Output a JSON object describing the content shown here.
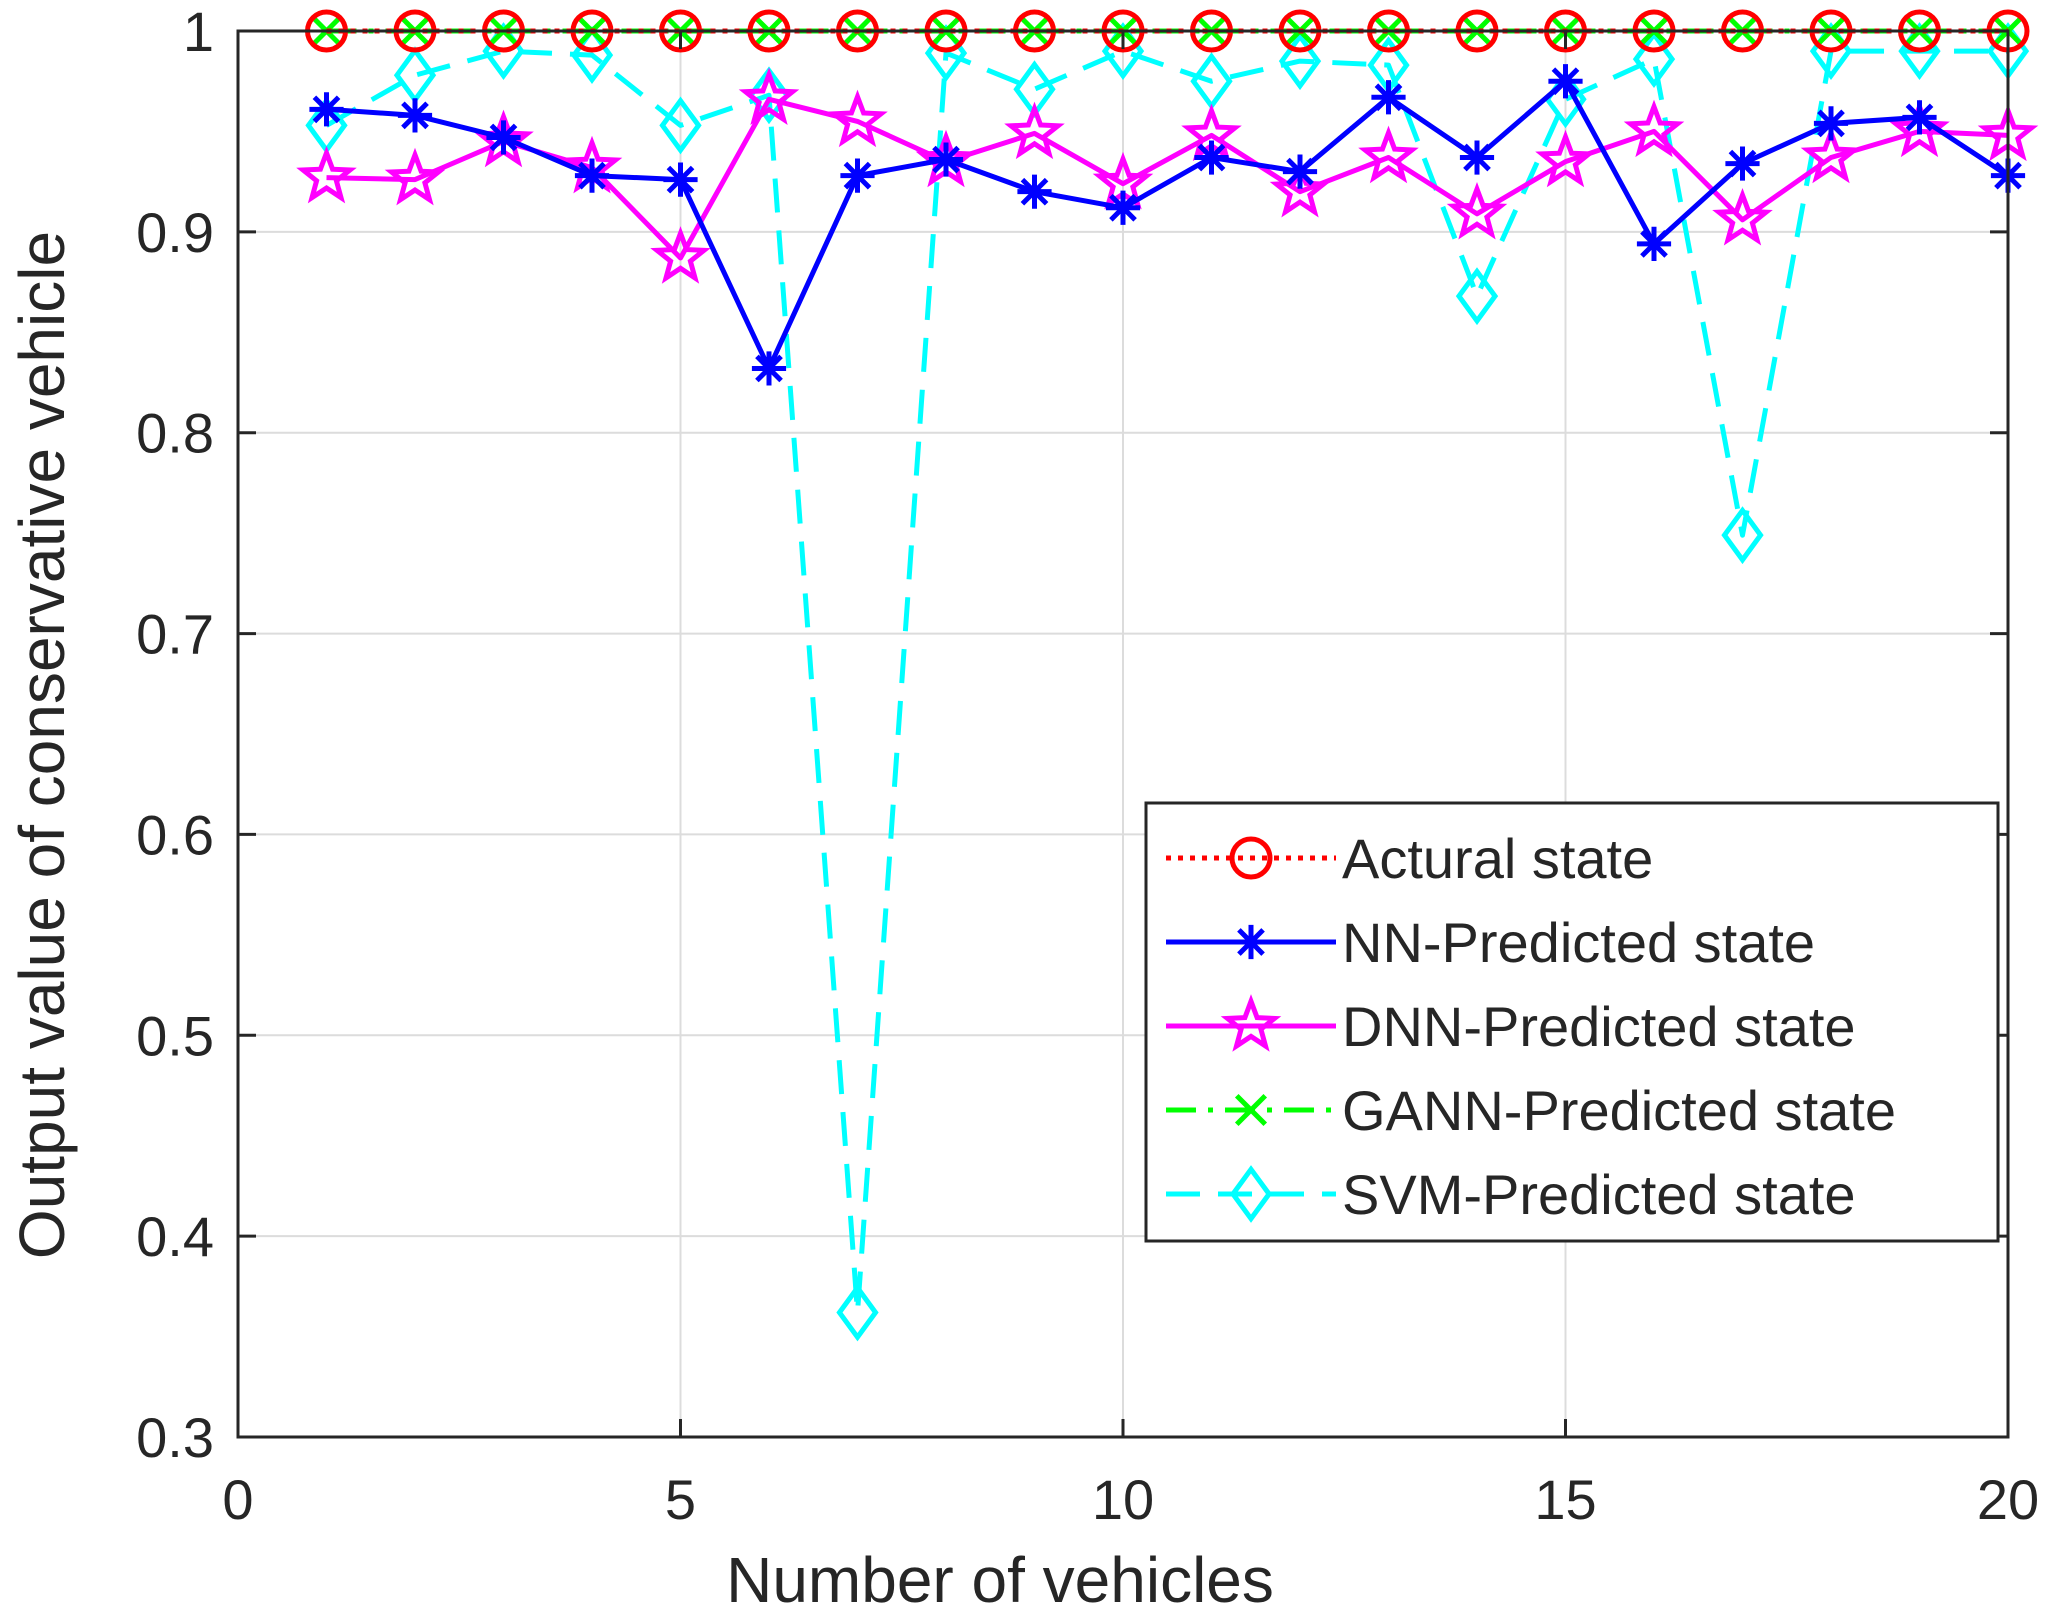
{
  "chart_data": {
    "type": "line",
    "title": "",
    "xlabel": "Number of vehicles",
    "ylabel": "Output value of conservative vehicle",
    "xlim": [
      0,
      20
    ],
    "ylim": [
      0.3,
      1
    ],
    "grid": true,
    "legend_position": "center-right",
    "x": [
      1,
      2,
      3,
      4,
      5,
      6,
      7,
      8,
      9,
      10,
      11,
      12,
      13,
      14,
      15,
      16,
      17,
      18,
      19,
      20
    ],
    "x_ticks": [
      0,
      5,
      10,
      15,
      20
    ],
    "y_ticks": [
      0.3,
      0.4,
      0.5,
      0.6,
      0.7,
      0.8,
      0.9,
      1
    ],
    "x_tick_labels": [
      "0",
      "5",
      "10",
      "15",
      "20"
    ],
    "y_tick_labels": [
      "0.3",
      "0.4",
      "0.5",
      "0.6",
      "0.7",
      "0.8",
      "0.9",
      "1"
    ],
    "series": [
      {
        "name": "Actural state",
        "color": "#ff0000",
        "line_style": "dotted",
        "marker": "circle",
        "values": [
          1,
          1,
          1,
          1,
          1,
          1,
          1,
          1,
          1,
          1,
          1,
          1,
          1,
          1,
          1,
          1,
          1,
          1,
          1,
          1
        ]
      },
      {
        "name": "NN-Predicted state",
        "color": "#0000ff",
        "line_style": "solid",
        "marker": "asterisk",
        "values": [
          0.961,
          0.958,
          0.947,
          0.928,
          0.926,
          0.832,
          0.928,
          0.936,
          0.92,
          0.912,
          0.937,
          0.93,
          0.967,
          0.937,
          0.975,
          0.894,
          0.934,
          0.954,
          0.957,
          0.928
        ]
      },
      {
        "name": "DNN-Predicted state",
        "color": "#ff00ff",
        "line_style": "solid",
        "marker": "star",
        "values": [
          0.927,
          0.926,
          0.945,
          0.932,
          0.887,
          0.966,
          0.955,
          0.935,
          0.949,
          0.924,
          0.948,
          0.92,
          0.937,
          0.909,
          0.935,
          0.95,
          0.906,
          0.937,
          0.95,
          0.948
        ]
      },
      {
        "name": "GANN-Predicted state",
        "color": "#00ff00",
        "line_style": "dashdot",
        "marker": "x",
        "values": [
          1,
          1,
          1,
          1,
          1,
          1,
          1,
          1,
          1,
          1,
          1,
          1,
          1,
          1,
          1,
          1,
          1,
          1,
          1,
          1
        ]
      },
      {
        "name": "SVM-Predicted state",
        "color": "#00ffff",
        "line_style": "dashed",
        "marker": "diamond",
        "values": [
          0.953,
          0.978,
          0.99,
          0.988,
          0.953,
          0.968,
          0.362,
          0.989,
          0.971,
          0.99,
          0.975,
          0.985,
          0.983,
          0.868,
          0.966,
          0.986,
          0.749,
          0.99,
          0.99,
          0.99
        ]
      }
    ]
  }
}
